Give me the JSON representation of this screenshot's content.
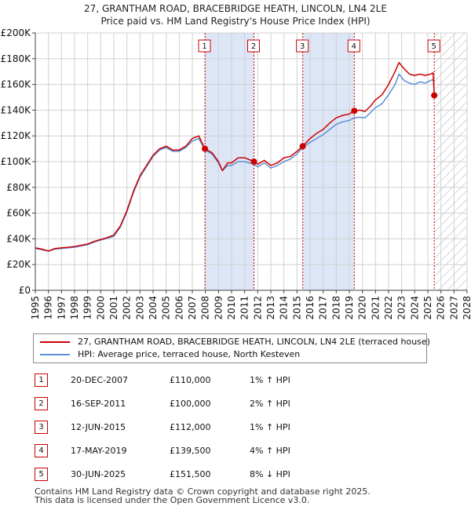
{
  "title_line1": "27, GRANTHAM ROAD, BRACEBRIDGE HEATH, LINCOLN, LN4 2LE",
  "title_line2": "Price paid vs. HM Land Registry's House Price Index (HPI)",
  "legend": {
    "property_label": "27, GRANTHAM ROAD, BRACEBRIDGE HEATH, LINCOLN, LN4 2LE (terraced house)",
    "hpi_label": "HPI: Average price, terraced house, North Kesteven"
  },
  "sales": [
    {
      "num": "1",
      "date": "20-DEC-2007",
      "price": "£110,000",
      "hpi": "1% ↑ HPI"
    },
    {
      "num": "2",
      "date": "16-SEP-2011",
      "price": "£100,000",
      "hpi": "2% ↑ HPI"
    },
    {
      "num": "3",
      "date": "12-JUN-2015",
      "price": "£112,000",
      "hpi": "1% ↑ HPI"
    },
    {
      "num": "4",
      "date": "17-MAY-2019",
      "price": "£139,500",
      "hpi": "4% ↑ HPI"
    },
    {
      "num": "5",
      "date": "30-JUN-2025",
      "price": "£151,500",
      "hpi": "8% ↓ HPI"
    }
  ],
  "footer_line1": "Contains HM Land Registry data © Crown copyright and database right 2025.",
  "footer_line2": "This data is licensed under the Open Government Licence v3.0.",
  "colors": {
    "property": "#cc0000",
    "hpi": "#5b8fd6",
    "shade": "#dde6f7",
    "grid": "#d0d0d0"
  },
  "chart_data": {
    "type": "line",
    "xlim": [
      1995,
      2028
    ],
    "ylim": [
      0,
      200000
    ],
    "y_ticks": [
      0,
      20000,
      40000,
      60000,
      80000,
      100000,
      120000,
      140000,
      160000,
      180000,
      200000
    ],
    "y_tick_labels": [
      "£0",
      "£20K",
      "£40K",
      "£60K",
      "£80K",
      "£100K",
      "£120K",
      "£140K",
      "£160K",
      "£180K",
      "£200K"
    ],
    "x_tick_labels": [
      "1995",
      "1996",
      "1997",
      "1998",
      "1999",
      "2000",
      "2001",
      "2002",
      "2003",
      "2004",
      "2005",
      "2006",
      "2007",
      "2008",
      "2009",
      "2010",
      "2011",
      "2012",
      "2013",
      "2014",
      "2015",
      "2016",
      "2017",
      "2018",
      "2019",
      "2020",
      "2021",
      "2022",
      "2023",
      "2024",
      "2025",
      "2026",
      "2027",
      "2028"
    ],
    "series": [
      {
        "name": "27, GRANTHAM ROAD, BRACEBRIDGE HEATH, LINCOLN, LN4 2LE (terraced house)",
        "x": [
          1995.0,
          1995.5,
          1996.0,
          1996.5,
          1997.0,
          1997.5,
          1998.0,
          1998.5,
          1999.0,
          1999.5,
          2000.0,
          2000.5,
          2001.0,
          2001.5,
          2002.0,
          2002.5,
          2003.0,
          2003.5,
          2004.0,
          2004.5,
          2005.0,
          2005.5,
          2006.0,
          2006.5,
          2007.0,
          2007.5,
          2007.96,
          2008.5,
          2009.0,
          2009.3,
          2009.7,
          2010.0,
          2010.5,
          2011.0,
          2011.71,
          2012.0,
          2012.5,
          2013.0,
          2013.5,
          2014.0,
          2014.5,
          2015.0,
          2015.44,
          2016.0,
          2016.5,
          2017.0,
          2017.5,
          2018.0,
          2018.5,
          2019.0,
          2019.38,
          2019.8,
          2020.2,
          2020.6,
          2021.0,
          2021.5,
          2022.0,
          2022.5,
          2022.8,
          2023.2,
          2023.6,
          2024.0,
          2024.4,
          2024.8,
          2025.2,
          2025.4,
          2025.49
        ],
        "y": [
          33000,
          32000,
          30500,
          32500,
          33000,
          33500,
          34000,
          35000,
          36000,
          38000,
          39500,
          41000,
          43000,
          50000,
          62000,
          77000,
          89000,
          97000,
          105000,
          110000,
          112000,
          109000,
          109000,
          112000,
          118000,
          120000,
          110000,
          107000,
          100000,
          93000,
          99000,
          99000,
          103000,
          103000,
          100000,
          98000,
          101000,
          97000,
          99000,
          103000,
          104000,
          108000,
          112000,
          118000,
          122000,
          125000,
          130000,
          134000,
          136000,
          137000,
          139500,
          140000,
          139000,
          143000,
          148000,
          152000,
          160000,
          170000,
          177000,
          172000,
          168000,
          167000,
          168000,
          167000,
          168000,
          169000,
          151500
        ]
      },
      {
        "name": "HPI: Average price, terraced house, North Kesteven",
        "x": [
          1995.0,
          1995.5,
          1996.0,
          1996.5,
          1997.0,
          1997.5,
          1998.0,
          1998.5,
          1999.0,
          1999.5,
          2000.0,
          2000.5,
          2001.0,
          2001.5,
          2002.0,
          2002.5,
          2003.0,
          2003.5,
          2004.0,
          2004.5,
          2005.0,
          2005.5,
          2006.0,
          2006.5,
          2007.0,
          2007.5,
          2007.96,
          2008.5,
          2009.0,
          2009.3,
          2009.7,
          2010.0,
          2010.5,
          2011.0,
          2011.71,
          2012.0,
          2012.5,
          2013.0,
          2013.5,
          2014.0,
          2014.5,
          2015.0,
          2015.44,
          2016.0,
          2016.5,
          2017.0,
          2017.5,
          2018.0,
          2018.5,
          2019.0,
          2019.38,
          2019.8,
          2020.2,
          2020.6,
          2021.0,
          2021.5,
          2022.0,
          2022.5,
          2022.8,
          2023.2,
          2023.6,
          2024.0,
          2024.4,
          2024.8,
          2025.2,
          2025.49
        ],
        "y": [
          32500,
          31500,
          30500,
          32000,
          32500,
          33000,
          33500,
          34500,
          35500,
          37500,
          39000,
          40500,
          42000,
          49000,
          61000,
          76000,
          88000,
          96000,
          104000,
          109000,
          111000,
          108000,
          108000,
          111000,
          116000,
          118000,
          109000,
          106000,
          99000,
          93000,
          97000,
          97000,
          100000,
          100000,
          98000,
          96000,
          99000,
          95000,
          97000,
          100000,
          102000,
          106000,
          111000,
          115000,
          118000,
          121000,
          125000,
          129000,
          131000,
          132000,
          134000,
          134500,
          134000,
          138000,
          142000,
          145000,
          152000,
          160000,
          168000,
          163000,
          161000,
          160000,
          162000,
          161000,
          163000,
          164000
        ]
      }
    ],
    "sales": [
      {
        "label": "1",
        "x": 2007.96,
        "y": 110000
      },
      {
        "label": "2",
        "x": 2011.71,
        "y": 100000
      },
      {
        "label": "3",
        "x": 2015.44,
        "y": 112000
      },
      {
        "label": "4",
        "x": 2019.38,
        "y": 139500
      },
      {
        "label": "5",
        "x": 2025.49,
        "y": 151500
      }
    ],
    "shaded_periods": [
      [
        2007.96,
        2011.71
      ],
      [
        2015.44,
        2019.38
      ]
    ],
    "hatched_period": [
      2025.49,
      2028
    ]
  }
}
